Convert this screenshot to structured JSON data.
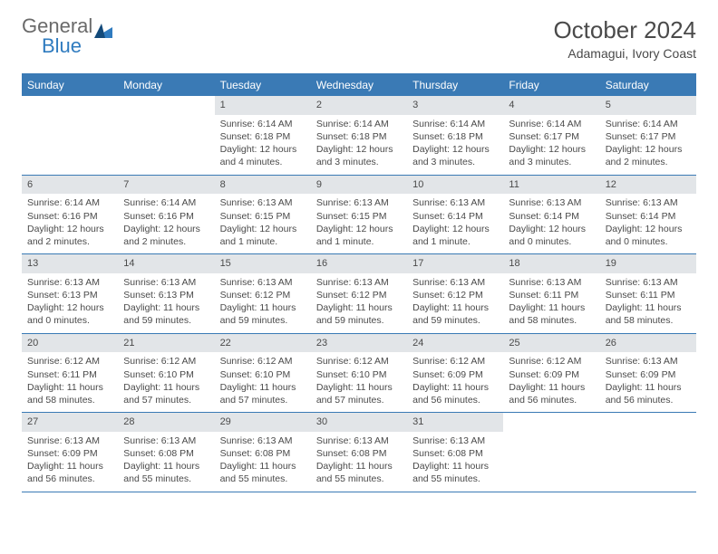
{
  "logo": {
    "text_gray": "General",
    "text_blue": "Blue",
    "accent": "#2f7bbf"
  },
  "header": {
    "title": "October 2024",
    "subtitle": "Adamagui, Ivory Coast"
  },
  "colors": {
    "header_bar": "#3a7ab5",
    "day_num_bg": "#e2e5e8",
    "border": "#3a7ab5",
    "text": "#4a4a4a",
    "bg": "#ffffff"
  },
  "daynames": [
    "Sunday",
    "Monday",
    "Tuesday",
    "Wednesday",
    "Thursday",
    "Friday",
    "Saturday"
  ],
  "cells": [
    {
      "n": "",
      "sr": "",
      "ss": "",
      "dl": ""
    },
    {
      "n": "",
      "sr": "",
      "ss": "",
      "dl": ""
    },
    {
      "n": "1",
      "sr": "Sunrise: 6:14 AM",
      "ss": "Sunset: 6:18 PM",
      "dl": "Daylight: 12 hours and 4 minutes."
    },
    {
      "n": "2",
      "sr": "Sunrise: 6:14 AM",
      "ss": "Sunset: 6:18 PM",
      "dl": "Daylight: 12 hours and 3 minutes."
    },
    {
      "n": "3",
      "sr": "Sunrise: 6:14 AM",
      "ss": "Sunset: 6:18 PM",
      "dl": "Daylight: 12 hours and 3 minutes."
    },
    {
      "n": "4",
      "sr": "Sunrise: 6:14 AM",
      "ss": "Sunset: 6:17 PM",
      "dl": "Daylight: 12 hours and 3 minutes."
    },
    {
      "n": "5",
      "sr": "Sunrise: 6:14 AM",
      "ss": "Sunset: 6:17 PM",
      "dl": "Daylight: 12 hours and 2 minutes."
    },
    {
      "n": "6",
      "sr": "Sunrise: 6:14 AM",
      "ss": "Sunset: 6:16 PM",
      "dl": "Daylight: 12 hours and 2 minutes."
    },
    {
      "n": "7",
      "sr": "Sunrise: 6:14 AM",
      "ss": "Sunset: 6:16 PM",
      "dl": "Daylight: 12 hours and 2 minutes."
    },
    {
      "n": "8",
      "sr": "Sunrise: 6:13 AM",
      "ss": "Sunset: 6:15 PM",
      "dl": "Daylight: 12 hours and 1 minute."
    },
    {
      "n": "9",
      "sr": "Sunrise: 6:13 AM",
      "ss": "Sunset: 6:15 PM",
      "dl": "Daylight: 12 hours and 1 minute."
    },
    {
      "n": "10",
      "sr": "Sunrise: 6:13 AM",
      "ss": "Sunset: 6:14 PM",
      "dl": "Daylight: 12 hours and 1 minute."
    },
    {
      "n": "11",
      "sr": "Sunrise: 6:13 AM",
      "ss": "Sunset: 6:14 PM",
      "dl": "Daylight: 12 hours and 0 minutes."
    },
    {
      "n": "12",
      "sr": "Sunrise: 6:13 AM",
      "ss": "Sunset: 6:14 PM",
      "dl": "Daylight: 12 hours and 0 minutes."
    },
    {
      "n": "13",
      "sr": "Sunrise: 6:13 AM",
      "ss": "Sunset: 6:13 PM",
      "dl": "Daylight: 12 hours and 0 minutes."
    },
    {
      "n": "14",
      "sr": "Sunrise: 6:13 AM",
      "ss": "Sunset: 6:13 PM",
      "dl": "Daylight: 11 hours and 59 minutes."
    },
    {
      "n": "15",
      "sr": "Sunrise: 6:13 AM",
      "ss": "Sunset: 6:12 PM",
      "dl": "Daylight: 11 hours and 59 minutes."
    },
    {
      "n": "16",
      "sr": "Sunrise: 6:13 AM",
      "ss": "Sunset: 6:12 PM",
      "dl": "Daylight: 11 hours and 59 minutes."
    },
    {
      "n": "17",
      "sr": "Sunrise: 6:13 AM",
      "ss": "Sunset: 6:12 PM",
      "dl": "Daylight: 11 hours and 59 minutes."
    },
    {
      "n": "18",
      "sr": "Sunrise: 6:13 AM",
      "ss": "Sunset: 6:11 PM",
      "dl": "Daylight: 11 hours and 58 minutes."
    },
    {
      "n": "19",
      "sr": "Sunrise: 6:13 AM",
      "ss": "Sunset: 6:11 PM",
      "dl": "Daylight: 11 hours and 58 minutes."
    },
    {
      "n": "20",
      "sr": "Sunrise: 6:12 AM",
      "ss": "Sunset: 6:11 PM",
      "dl": "Daylight: 11 hours and 58 minutes."
    },
    {
      "n": "21",
      "sr": "Sunrise: 6:12 AM",
      "ss": "Sunset: 6:10 PM",
      "dl": "Daylight: 11 hours and 57 minutes."
    },
    {
      "n": "22",
      "sr": "Sunrise: 6:12 AM",
      "ss": "Sunset: 6:10 PM",
      "dl": "Daylight: 11 hours and 57 minutes."
    },
    {
      "n": "23",
      "sr": "Sunrise: 6:12 AM",
      "ss": "Sunset: 6:10 PM",
      "dl": "Daylight: 11 hours and 57 minutes."
    },
    {
      "n": "24",
      "sr": "Sunrise: 6:12 AM",
      "ss": "Sunset: 6:09 PM",
      "dl": "Daylight: 11 hours and 56 minutes."
    },
    {
      "n": "25",
      "sr": "Sunrise: 6:12 AM",
      "ss": "Sunset: 6:09 PM",
      "dl": "Daylight: 11 hours and 56 minutes."
    },
    {
      "n": "26",
      "sr": "Sunrise: 6:13 AM",
      "ss": "Sunset: 6:09 PM",
      "dl": "Daylight: 11 hours and 56 minutes."
    },
    {
      "n": "27",
      "sr": "Sunrise: 6:13 AM",
      "ss": "Sunset: 6:09 PM",
      "dl": "Daylight: 11 hours and 56 minutes."
    },
    {
      "n": "28",
      "sr": "Sunrise: 6:13 AM",
      "ss": "Sunset: 6:08 PM",
      "dl": "Daylight: 11 hours and 55 minutes."
    },
    {
      "n": "29",
      "sr": "Sunrise: 6:13 AM",
      "ss": "Sunset: 6:08 PM",
      "dl": "Daylight: 11 hours and 55 minutes."
    },
    {
      "n": "30",
      "sr": "Sunrise: 6:13 AM",
      "ss": "Sunset: 6:08 PM",
      "dl": "Daylight: 11 hours and 55 minutes."
    },
    {
      "n": "31",
      "sr": "Sunrise: 6:13 AM",
      "ss": "Sunset: 6:08 PM",
      "dl": "Daylight: 11 hours and 55 minutes."
    },
    {
      "n": "",
      "sr": "",
      "ss": "",
      "dl": ""
    },
    {
      "n": "",
      "sr": "",
      "ss": "",
      "dl": ""
    }
  ]
}
